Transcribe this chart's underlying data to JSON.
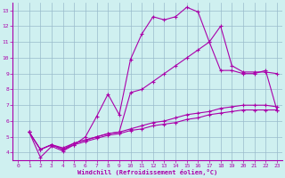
{
  "xlabel": "Windchill (Refroidissement éolien,°C)",
  "background_color": "#cff0f0",
  "line_color": "#aa00aa",
  "grid_color": "#99bbcc",
  "xlim": [
    -0.5,
    23.5
  ],
  "ylim": [
    3.5,
    13.5
  ],
  "xticks": [
    0,
    1,
    2,
    3,
    4,
    5,
    6,
    7,
    8,
    9,
    10,
    11,
    12,
    13,
    14,
    15,
    16,
    17,
    18,
    19,
    20,
    21,
    22,
    23
  ],
  "yticks": [
    4,
    5,
    6,
    7,
    8,
    9,
    10,
    11,
    12,
    13
  ],
  "lines": [
    {
      "x": [
        1,
        2,
        3,
        4,
        5,
        6,
        7,
        8,
        9,
        10,
        11,
        12,
        13,
        14,
        15,
        16,
        17,
        18,
        19,
        20,
        21,
        22,
        23
      ],
      "y": [
        5.3,
        3.7,
        4.4,
        4.1,
        4.5,
        5.0,
        6.3,
        7.7,
        6.4,
        9.9,
        11.5,
        12.6,
        12.4,
        12.6,
        13.2,
        12.9,
        11.0,
        9.2,
        9.2,
        9.0,
        9.0,
        9.2,
        6.7
      ]
    },
    {
      "x": [
        1,
        2,
        3,
        4,
        5,
        6,
        7,
        8,
        9,
        10,
        11,
        12,
        13,
        14,
        15,
        16,
        17,
        18,
        19,
        20,
        21,
        22,
        23
      ],
      "y": [
        5.3,
        4.2,
        4.5,
        4.2,
        4.6,
        4.8,
        5.0,
        5.2,
        5.3,
        7.8,
        8.0,
        8.5,
        9.0,
        9.5,
        10.0,
        10.5,
        11.0,
        12.0,
        9.5,
        9.1,
        9.1,
        9.1,
        9.0
      ]
    },
    {
      "x": [
        1,
        2,
        3,
        4,
        5,
        6,
        7,
        8,
        9,
        10,
        11,
        12,
        13,
        14,
        15,
        16,
        17,
        18,
        19,
        20,
        21,
        22,
        23
      ],
      "y": [
        5.3,
        4.2,
        4.5,
        4.3,
        4.6,
        4.8,
        5.0,
        5.2,
        5.3,
        5.5,
        5.7,
        5.9,
        6.0,
        6.2,
        6.4,
        6.5,
        6.6,
        6.8,
        6.9,
        7.0,
        7.0,
        7.0,
        6.9
      ]
    },
    {
      "x": [
        1,
        2,
        3,
        4,
        5,
        6,
        7,
        8,
        9,
        10,
        11,
        12,
        13,
        14,
        15,
        16,
        17,
        18,
        19,
        20,
        21,
        22,
        23
      ],
      "y": [
        5.3,
        4.2,
        4.5,
        4.2,
        4.5,
        4.7,
        4.9,
        5.1,
        5.2,
        5.4,
        5.5,
        5.7,
        5.8,
        5.9,
        6.1,
        6.2,
        6.4,
        6.5,
        6.6,
        6.7,
        6.7,
        6.7,
        6.7
      ]
    }
  ],
  "marker": "+",
  "markersize": 3,
  "linewidth": 0.8
}
